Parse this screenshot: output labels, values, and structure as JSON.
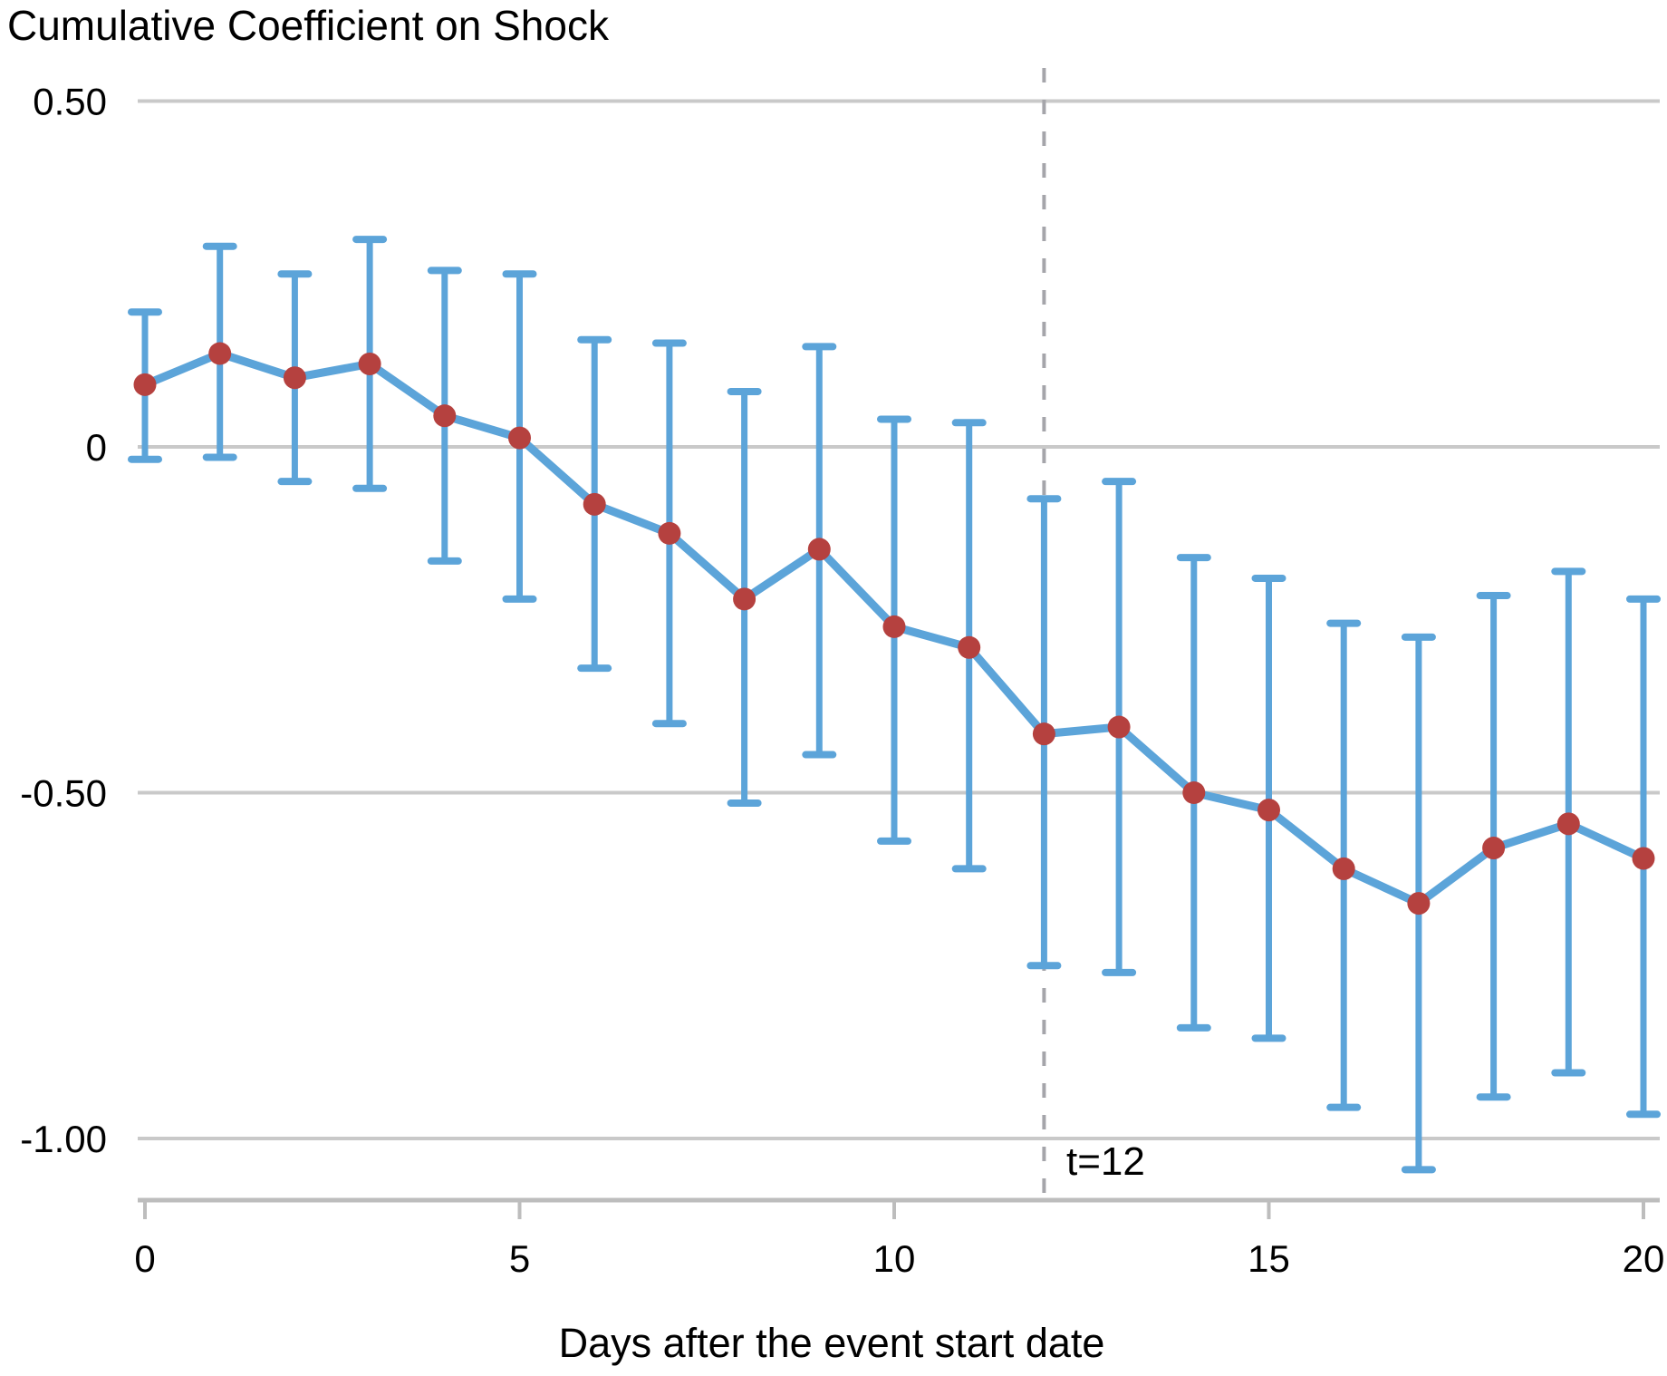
{
  "chart_data": {
    "type": "line",
    "title": "Cumulative Coefficient on Shock",
    "xlabel": "Days after the event start date",
    "ylabel": "",
    "x": [
      0,
      1,
      2,
      3,
      4,
      5,
      6,
      7,
      8,
      9,
      10,
      11,
      12,
      13,
      14,
      15,
      16,
      17,
      18,
      19,
      20
    ],
    "series": [
      {
        "name": "cumulative-coefficient",
        "values": [
          0.09,
          0.135,
          0.1,
          0.12,
          0.045,
          0.013,
          -0.083,
          -0.125,
          -0.22,
          -0.148,
          -0.26,
          -0.29,
          -0.415,
          -0.405,
          -0.5,
          -0.525,
          -0.61,
          -0.66,
          -0.58,
          -0.545,
          -0.595
        ]
      }
    ],
    "ci_high": [
      0.195,
      0.29,
      0.25,
      0.3,
      0.255,
      0.25,
      0.155,
      0.15,
      0.08,
      0.145,
      0.04,
      0.035,
      -0.075,
      -0.05,
      -0.16,
      -0.19,
      -0.255,
      -0.275,
      -0.215,
      -0.18,
      -0.22
    ],
    "ci_low": [
      -0.018,
      -0.015,
      -0.05,
      -0.06,
      -0.165,
      -0.22,
      -0.32,
      -0.4,
      -0.515,
      -0.445,
      -0.57,
      -0.61,
      -0.75,
      -0.76,
      -0.84,
      -0.855,
      -0.955,
      -1.045,
      -0.94,
      -0.905,
      -0.965
    ],
    "yticks": [
      {
        "label": "0.50",
        "value": 0.5
      },
      {
        "label": "0",
        "value": 0.0
      },
      {
        "label": "-0.50",
        "value": -0.5
      },
      {
        "label": "-1.00",
        "value": -1.0
      }
    ],
    "xticks": [
      {
        "label": "0",
        "value": 0
      },
      {
        "label": "5",
        "value": 5
      },
      {
        "label": "10",
        "value": 10
      },
      {
        "label": "15",
        "value": 15
      },
      {
        "label": "20",
        "value": 20
      }
    ],
    "xlim": [
      0,
      20
    ],
    "ylim": [
      -1.15,
      0.55
    ],
    "grid": "horizontal",
    "legend": "none",
    "vline": {
      "x": 12,
      "label": "t=12"
    },
    "colors": {
      "errorbar_blue": "#5ca4d9",
      "line_blue": "#5ca4d9",
      "dot_red": "#b5413f",
      "gridline_gray": "#c9c9c9",
      "axis_gray": "#bdbdbd",
      "dashed_gray": "#a5a5aa",
      "text_black": "#000000"
    }
  }
}
